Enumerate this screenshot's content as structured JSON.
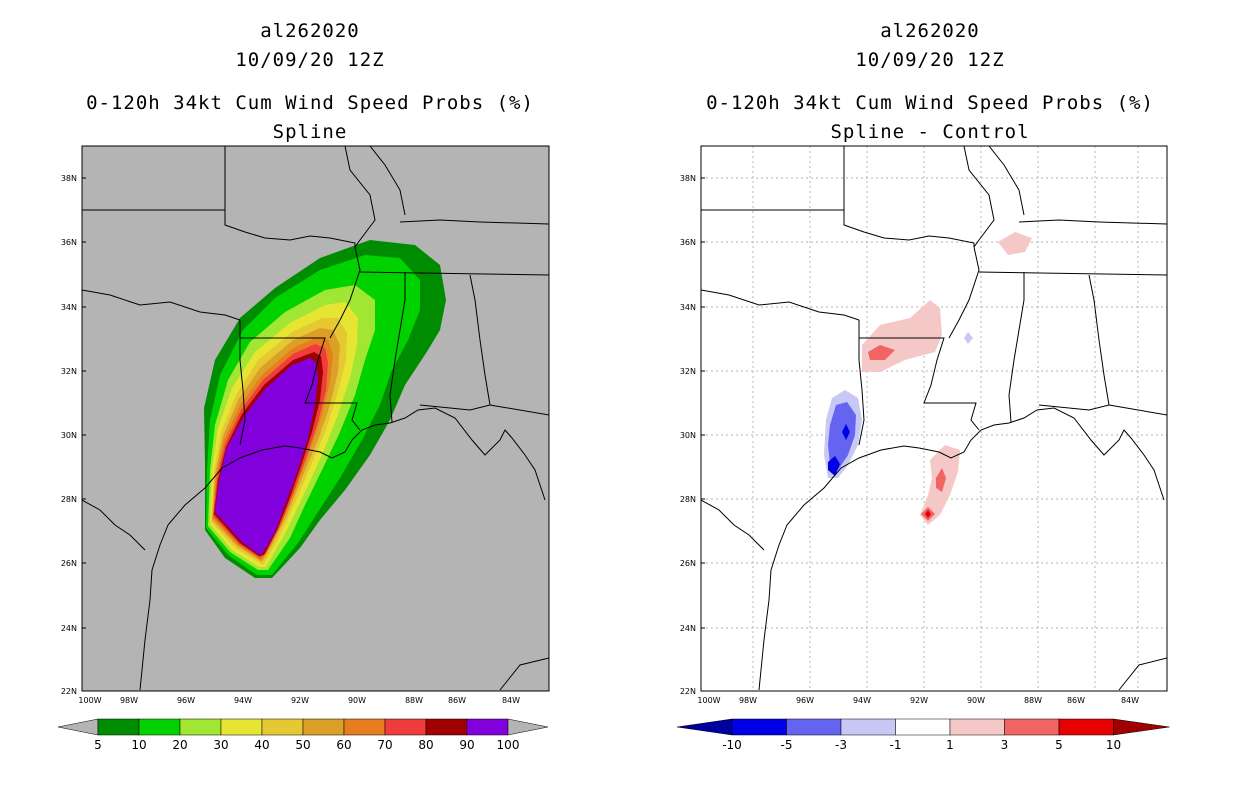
{
  "left_panel": {
    "storm_id": "al262020",
    "date": "10/09/20 12Z",
    "product": "0-120h 34kt Cum Wind Speed Probs (%)",
    "subtitle": "Spline"
  },
  "right_panel": {
    "storm_id": "al262020",
    "date": "10/09/20 12Z",
    "product": "0-120h 34kt Cum Wind Speed Probs (%)",
    "subtitle": "Spline - Control"
  },
  "axes": {
    "lat_labels": [
      "38N",
      "36N",
      "34N",
      "32N",
      "30N",
      "28N",
      "26N",
      "24N",
      "22N"
    ],
    "lon_labels": [
      "100W",
      "98W",
      "96W",
      "94W",
      "92W",
      "90W",
      "88W",
      "86W",
      "84W"
    ]
  },
  "left_colorbar": {
    "labels": [
      "5",
      "10",
      "20",
      "30",
      "40",
      "50",
      "60",
      "70",
      "80",
      "90",
      "100"
    ],
    "colors": [
      "#008c00",
      "#00d200",
      "#a0e632",
      "#e6e632",
      "#e6c832",
      "#dca028",
      "#e67d1e",
      "#f03c3c",
      "#a00000",
      "#8200dc"
    ]
  },
  "right_colorbar": {
    "labels": [
      "-10",
      "-5",
      "-3",
      "-1",
      "1",
      "3",
      "5",
      "10"
    ],
    "colors": [
      "#0000e6",
      "#6464f0",
      "#c8c8f5",
      "#ffffff",
      "#f5c8c8",
      "#f06464",
      "#e60000"
    ],
    "end_low": "#0000a0",
    "end_high": "#a00000"
  }
}
